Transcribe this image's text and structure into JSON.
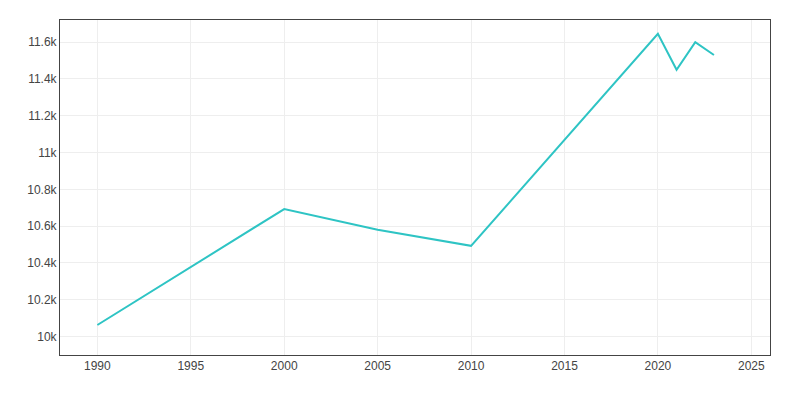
{
  "chart_data": {
    "type": "line",
    "x": [
      1990,
      2000,
      2005,
      2010,
      2020,
      2021,
      2022,
      2023
    ],
    "values": [
      10063,
      10693,
      10580,
      10493,
      11645,
      11450,
      11600,
      11530
    ],
    "color": "#2EC4C4",
    "xlim": [
      1988,
      2026
    ],
    "ylim": [
      9900,
      11720
    ],
    "xticks": [
      1990,
      1995,
      2000,
      2005,
      2010,
      2015,
      2020,
      2025
    ],
    "yticks": [
      {
        "value": 10000,
        "label": "10k"
      },
      {
        "value": 10200,
        "label": "10.2k"
      },
      {
        "value": 10400,
        "label": "10.4k"
      },
      {
        "value": 10600,
        "label": "10.6k"
      },
      {
        "value": 10800,
        "label": "10.8k"
      },
      {
        "value": 11000,
        "label": "11k"
      },
      {
        "value": 11200,
        "label": "11.2k"
      },
      {
        "value": 11400,
        "label": "11.4k"
      },
      {
        "value": 11600,
        "label": "11.6k"
      }
    ],
    "grid": true
  }
}
